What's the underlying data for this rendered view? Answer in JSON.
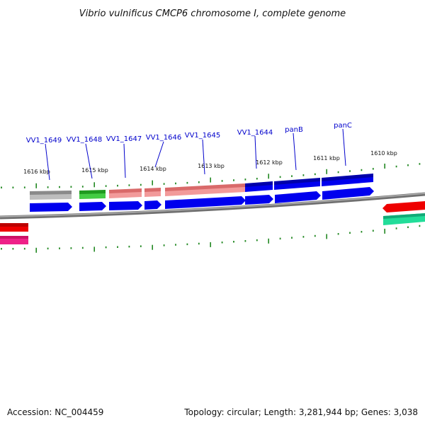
{
  "title": "Vibrio vulnificus CMCP6 chromosome I, complete genome",
  "footer": {
    "accession": "Accession: NC_004459",
    "topology": "Topology: circular; Length: 3,281,944 bp; Genes: 3,038"
  },
  "colors": {
    "cds_blue": "#0000ee",
    "feature_grey": "#a8a8a8",
    "feature_green": "#33bb33",
    "feature_pink": "#ee8888",
    "reverse_red": "#ee0000",
    "reverse_magenta": "#ee2288",
    "reverse_green": "#22dd99",
    "tick_green": "#228822",
    "backbone": "#808080",
    "label_blue": "#0000cc"
  },
  "ticks": [
    "1616 kbp",
    "1615 kbp",
    "1614 kbp",
    "1613 kbp",
    "1612 kbp",
    "1611 kbp",
    "1610 kbp"
  ],
  "genes": [
    "VV1_1649",
    "VV1_1648",
    "VV1_1647",
    "VV1_1646",
    "VV1_1645",
    "VV1_1644",
    "panB",
    "panC"
  ]
}
